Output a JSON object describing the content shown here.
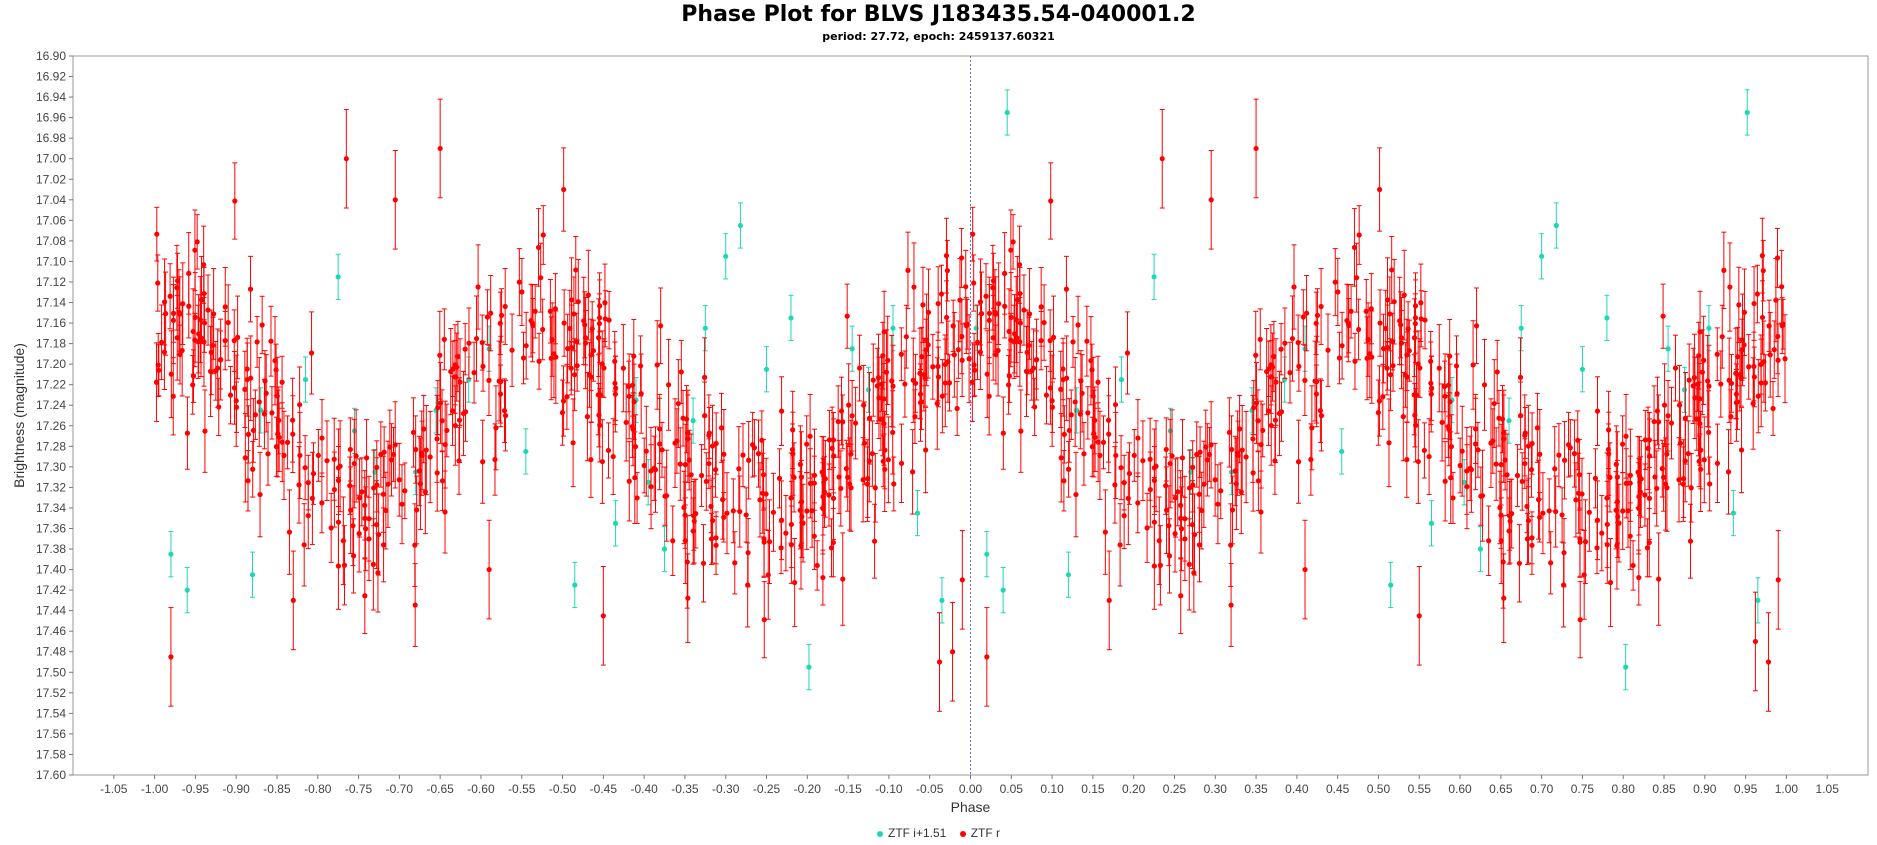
{
  "chart_data": {
    "type": "scatter",
    "title": "Phase Plot for BLVS J183435.54-040001.2",
    "subtitle": "period: 27.72, epoch: 2459137.60321",
    "xlabel": "Phase",
    "ylabel": "Brightness (magnitude)",
    "xlim": [
      -1.1,
      1.1
    ],
    "ylim": [
      16.9,
      17.6
    ],
    "y_inverted": true,
    "x_ticks": [
      "-1.05",
      "-1.00",
      "-0.95",
      "-0.90",
      "-0.85",
      "-0.80",
      "-0.75",
      "-0.70",
      "-0.65",
      "-0.60",
      "-0.55",
      "-0.50",
      "-0.45",
      "-0.40",
      "-0.35",
      "-0.30",
      "-0.25",
      "-0.20",
      "-0.15",
      "-0.10",
      "-0.05",
      "0.00",
      "0.05",
      "0.10",
      "0.15",
      "0.20",
      "0.25",
      "0.30",
      "0.35",
      "0.40",
      "0.45",
      "0.50",
      "0.55",
      "0.60",
      "0.65",
      "0.70",
      "0.75",
      "0.80",
      "0.85",
      "0.90",
      "0.95",
      "1.00",
      "1.05"
    ],
    "y_ticks": [
      "16.90",
      "16.92",
      "16.94",
      "16.96",
      "16.98",
      "17.00",
      "17.02",
      "17.04",
      "17.06",
      "17.08",
      "17.10",
      "17.12",
      "17.14",
      "17.16",
      "17.18",
      "17.20",
      "17.22",
      "17.24",
      "17.26",
      "17.28",
      "17.30",
      "17.32",
      "17.34",
      "17.36",
      "17.38",
      "17.40",
      "17.42",
      "17.44",
      "17.46",
      "17.48",
      "17.50",
      "17.52",
      "17.54",
      "17.56",
      "17.58",
      "17.60"
    ],
    "phase_marker": 0.0,
    "legend_position": "bottom-center",
    "grid": false,
    "series": [
      {
        "name": "ZTF i+1.51",
        "color": "#1ed8b4",
        "error": 0.022,
        "points": [
          [
            0.045,
            16.955
          ],
          [
            0.952,
            16.955
          ],
          [
            0.007,
            17.165
          ],
          [
            -0.198,
            17.495
          ],
          [
            0.803,
            17.495
          ],
          [
            0.718,
            17.065
          ],
          [
            -0.282,
            17.065
          ],
          [
            0.625,
            17.38
          ],
          [
            -0.375,
            17.38
          ],
          [
            0.565,
            17.355
          ],
          [
            -0.435,
            17.355
          ],
          [
            0.12,
            17.405
          ],
          [
            -0.88,
            17.405
          ],
          [
            0.32,
            17.305
          ],
          [
            -0.68,
            17.305
          ],
          [
            0.225,
            17.115
          ],
          [
            -0.775,
            17.115
          ],
          [
            0.41,
            17.185
          ],
          [
            -0.59,
            17.185
          ],
          [
            0.515,
            17.415
          ],
          [
            -0.485,
            17.415
          ],
          [
            0.66,
            17.255
          ],
          [
            -0.34,
            17.255
          ],
          [
            0.78,
            17.155
          ],
          [
            -0.22,
            17.155
          ],
          [
            0.875,
            17.225
          ],
          [
            -0.125,
            17.225
          ],
          [
            0.935,
            17.345
          ],
          [
            -0.065,
            17.345
          ],
          [
            0.965,
            17.43
          ],
          [
            -0.035,
            17.43
          ],
          [
            0.245,
            17.265
          ],
          [
            -0.755,
            17.265
          ],
          [
            0.385,
            17.215
          ],
          [
            -0.615,
            17.215
          ],
          [
            0.855,
            17.185
          ],
          [
            -0.145,
            17.185
          ],
          [
            0.185,
            17.215
          ],
          [
            -0.815,
            17.215
          ],
          [
            0.59,
            17.235
          ],
          [
            -0.41,
            17.235
          ],
          [
            0.7,
            17.095
          ],
          [
            -0.3,
            17.095
          ],
          [
            0.04,
            17.42
          ],
          [
            -0.96,
            17.42
          ],
          [
            0.75,
            17.205
          ],
          [
            -0.25,
            17.205
          ],
          [
            0.455,
            17.285
          ],
          [
            -0.545,
            17.285
          ],
          [
            0.27,
            17.305
          ],
          [
            -0.73,
            17.305
          ],
          [
            0.82,
            17.315
          ],
          [
            -0.18,
            17.315
          ],
          [
            0.905,
            17.165
          ],
          [
            -0.095,
            17.165
          ],
          [
            0.13,
            17.245
          ],
          [
            -0.87,
            17.245
          ],
          [
            0.02,
            17.385
          ],
          [
            -0.98,
            17.385
          ],
          [
            0.675,
            17.165
          ],
          [
            -0.325,
            17.165
          ],
          [
            0.345,
            17.245
          ],
          [
            -0.655,
            17.245
          ],
          [
            0.605,
            17.315
          ],
          [
            -0.395,
            17.315
          ]
        ]
      },
      {
        "name": "ZTF r",
        "color": "#ff0000",
        "error": 0.03,
        "generated": true,
        "harmonics": {
          "a1": -0.0065,
          "b1": -0.0143,
          "a2": -0.0854,
          "b2": 0.0034,
          "a3": 0.0023,
          "b3": -0.0128,
          "mean": 17.255
        },
        "count": 520,
        "scatter": 0.045,
        "extra_points": [
          [
            0.235,
            17.0
          ],
          [
            -0.765,
            17.0
          ],
          [
            0.35,
            16.99
          ],
          [
            -0.65,
            16.99
          ],
          [
            0.295,
            17.04
          ],
          [
            -0.705,
            17.04
          ],
          [
            0.962,
            17.47
          ],
          [
            -0.038,
            17.49
          ],
          [
            0.978,
            17.49
          ],
          [
            -0.022,
            17.48
          ],
          [
            0.02,
            17.485
          ],
          [
            -0.98,
            17.485
          ],
          [
            0.17,
            17.43
          ],
          [
            -0.83,
            17.43
          ],
          [
            0.55,
            17.445
          ],
          [
            -0.45,
            17.445
          ],
          [
            0.41,
            17.4
          ],
          [
            -0.59,
            17.4
          ],
          [
            0.99,
            17.41
          ],
          [
            -0.01,
            17.41
          ]
        ]
      }
    ]
  }
}
